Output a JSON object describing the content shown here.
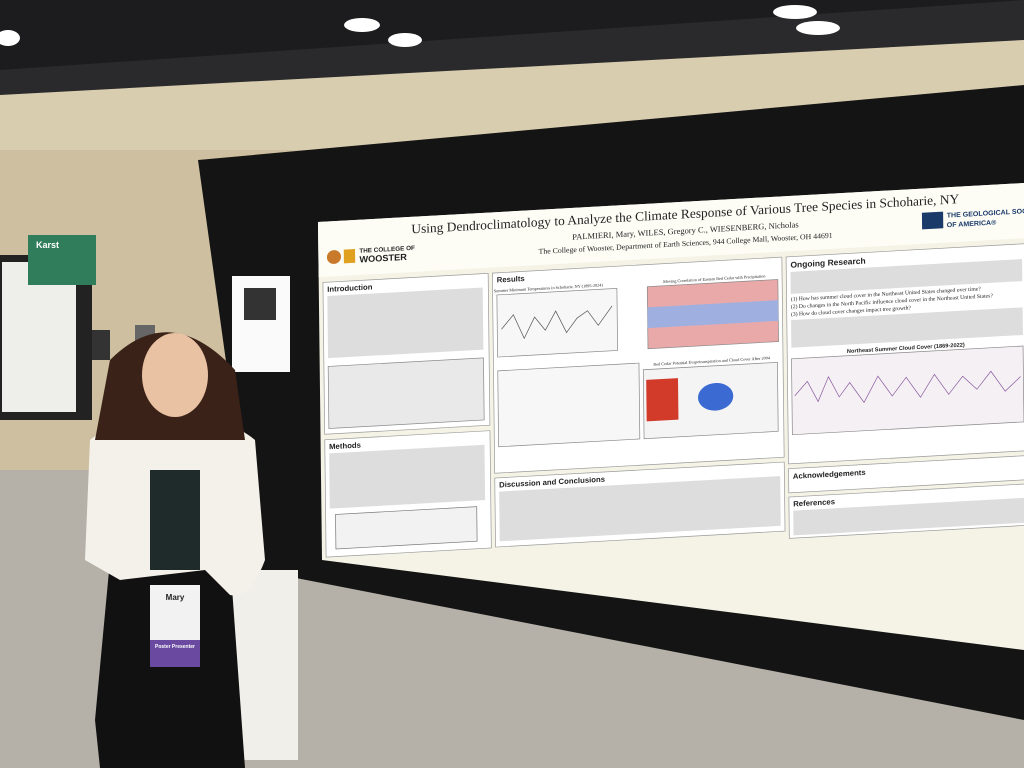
{
  "sign": "Karst",
  "badge": {
    "name": "Mary",
    "ribbon": "Poster Presenter"
  },
  "poster": {
    "title": "Using Dendroclimatology to Analyze the Climate Response of Various Tree Species in Schoharie, NY",
    "authors": "PALMIERI, Mary, WILES, Gregory C., WIESENBERG, Nicholas",
    "affiliation": "The College of Wooster, Department of Earth Sciences, 944 College Mall, Wooster, OH 44691",
    "college_logo": [
      "THE COLLEGE OF",
      "WOOSTER"
    ],
    "society_logo": [
      "THE GEOLOGICAL SOCIETY",
      "OF AMERICA®"
    ],
    "sections": {
      "introduction": "Introduction",
      "methods": "Methods",
      "results": "Results",
      "discussion": "Discussion and Conclusions",
      "ongoing": "Ongoing Research",
      "acknowledgements": "Acknowledgements",
      "references": "References"
    },
    "figures": [
      "Summer Minimum Temperatures in Schoharie, NY (1895-2024)",
      "Moving Correlation of Eastern Red Cedar with Precipitation",
      "Red Cedar Potential Evapotranspiration and Cloud Cover After 2004",
      "Northeast Summer Cloud Cover (1869-2022)"
    ],
    "questions": [
      "(1) How has summer cloud cover in the Northeast United States changed over time?",
      "(2) Do changes in the North Pacific influence cloud cover in the Northeast United States?",
      "(3) How do cloud cover changes impact tree growth?"
    ]
  }
}
